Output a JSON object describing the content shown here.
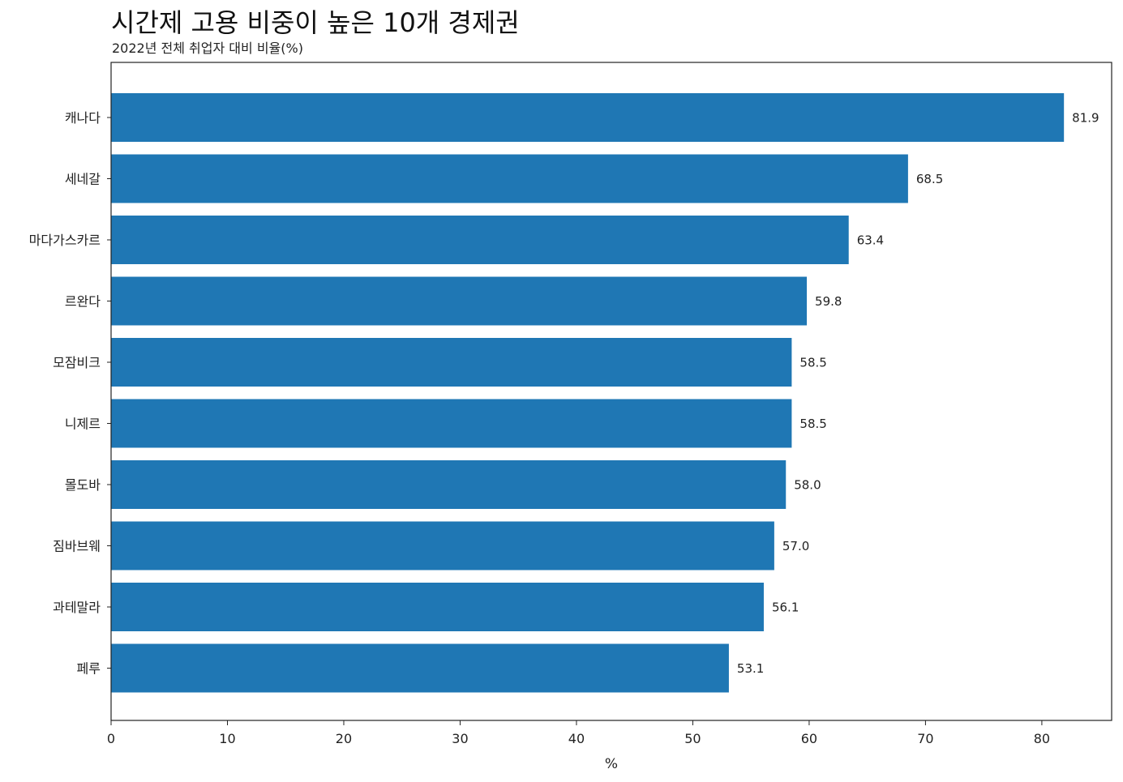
{
  "chart_data": {
    "type": "bar",
    "orientation": "horizontal",
    "title": "시간제 고용 비중이 높은 10개 경제권",
    "subtitle": "2022년 전체 취업자 대비 비율(%)",
    "xlabel": "%",
    "ylabel": "",
    "xlim": [
      0,
      86
    ],
    "xticks": [
      0,
      10,
      20,
      30,
      40,
      50,
      60,
      70,
      80
    ],
    "grid": false,
    "bar_color": "#1f77b4",
    "categories": [
      "캐나다",
      "세네갈",
      "마다가스카르",
      "르완다",
      "모잠비크",
      "니제르",
      "몰도바",
      "짐바브웨",
      "과테말라",
      "페루"
    ],
    "values": [
      81.9,
      68.5,
      63.4,
      59.8,
      58.5,
      58.5,
      58.0,
      57.0,
      56.1,
      53.1
    ],
    "value_labels": [
      "81.9",
      "68.5",
      "63.4",
      "59.8",
      "58.5",
      "58.5",
      "58.0",
      "57.0",
      "56.1",
      "53.1"
    ]
  }
}
